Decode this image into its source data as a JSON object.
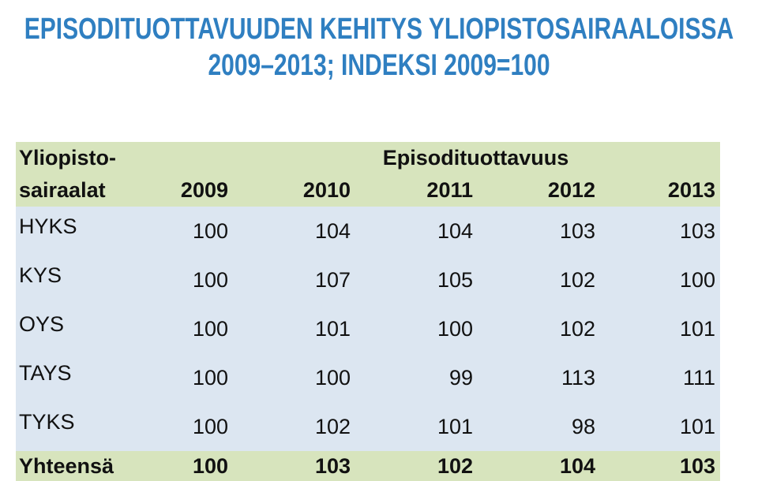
{
  "title": "EPISODITUOTTAVUUDEN KEHITYS YLIOPISTOSAIRAALOISSA 2009–2013; INDEKSI 2009=100",
  "table": {
    "header": {
      "row_label": [
        "Yliopisto-",
        "sairaalat"
      ],
      "group": "Episodituottavuus",
      "years": [
        "2009",
        "2010",
        "2011",
        "2012",
        "2013"
      ]
    },
    "rows": [
      {
        "name": "HYKS",
        "values": [
          100,
          104,
          104,
          103,
          103
        ]
      },
      {
        "name": "KYS",
        "values": [
          100,
          107,
          105,
          102,
          100
        ]
      },
      {
        "name": "OYS",
        "values": [
          100,
          101,
          100,
          102,
          101
        ]
      },
      {
        "name": "TAYS",
        "values": [
          100,
          100,
          99,
          113,
          111
        ]
      },
      {
        "name": "TYKS",
        "values": [
          100,
          102,
          101,
          98,
          101
        ]
      }
    ],
    "total": {
      "name": "Yhteensä",
      "values": [
        100,
        103,
        102,
        104,
        103
      ]
    }
  }
}
